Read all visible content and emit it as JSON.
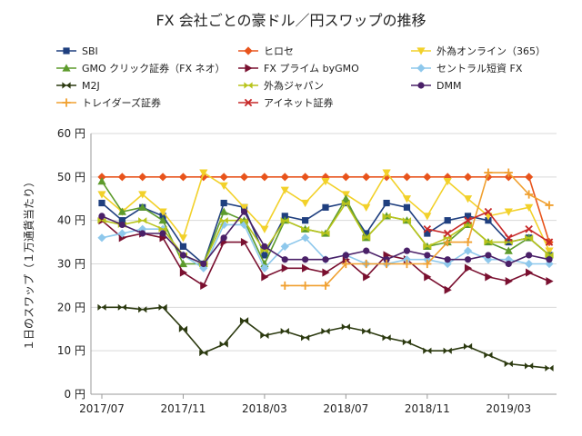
{
  "chart_data": {
    "type": "line",
    "title": "FX 会社ごとの豪ドル／円スワップの推移",
    "ylabel": "１日のスワップ（１万通貨当たり）",
    "xlabel": "",
    "ylim": [
      0,
      60
    ],
    "y_ticks": [
      "0 円",
      "10 円",
      "20 円",
      "30 円",
      "40 円",
      "50 円",
      "60 円"
    ],
    "x_ticks": [
      {
        "label": "2017/07",
        "index": 0
      },
      {
        "label": "2017/11",
        "index": 4
      },
      {
        "label": "2018/03",
        "index": 8
      },
      {
        "label": "2018/07",
        "index": 12
      },
      {
        "label": "2018/11",
        "index": 16
      },
      {
        "label": "2019/03",
        "index": 20
      }
    ],
    "x_count": 23,
    "series": [
      {
        "name": "SBI",
        "color": "#1f3f7f",
        "marker": "square",
        "values": [
          44,
          40,
          43,
          41,
          34,
          30,
          44,
          43,
          32,
          41,
          40,
          43,
          44,
          37,
          44,
          43,
          37,
          40,
          41,
          40,
          35,
          36,
          32
        ]
      },
      {
        "name": "ヒロセ",
        "color": "#e8541c",
        "marker": "diamond",
        "values": [
          50,
          50,
          50,
          50,
          50,
          50,
          50,
          50,
          50,
          50,
          50,
          50,
          50,
          50,
          50,
          50,
          50,
          50,
          50,
          50,
          50,
          50,
          35
        ]
      },
      {
        "name": "外為オンライン（365）",
        "color": "#f2d12a",
        "marker": "triangle-down",
        "values": [
          46,
          42,
          46,
          42,
          36,
          51,
          48,
          43,
          38,
          47,
          44,
          49,
          46,
          43,
          51,
          45,
          41,
          49,
          45,
          41,
          42,
          43,
          33
        ]
      },
      {
        "name": "GMO クリック証券（FX ネオ）",
        "color": "#5d9b2c",
        "marker": "triangle",
        "values": [
          49,
          42,
          43,
          40,
          30,
          30,
          42,
          40,
          30,
          40,
          38,
          37,
          45,
          36,
          41,
          40,
          34,
          35,
          39,
          35,
          33,
          36,
          32
        ]
      },
      {
        "name": "FX プライム byGMO",
        "color": "#7a1030",
        "marker": "triangle-right",
        "values": [
          40,
          36,
          37,
          36,
          28,
          25,
          35,
          35,
          27,
          29,
          29,
          28,
          31,
          27,
          32,
          31,
          27,
          24,
          29,
          27,
          26,
          28,
          26
        ]
      },
      {
        "name": "セントラル短資 FX",
        "color": "#8ec8ec",
        "marker": "diamond",
        "values": [
          36,
          37,
          38,
          38,
          32,
          29,
          39,
          39,
          29,
          34,
          36,
          31,
          32,
          30,
          30,
          31,
          31,
          30,
          33,
          31,
          31,
          30,
          30
        ]
      },
      {
        "name": "M2J",
        "color": "#2c3a10",
        "marker": "bowtie",
        "values": [
          20,
          20,
          19.5,
          20,
          15,
          9.5,
          11.5,
          17,
          13.5,
          14.5,
          13,
          14.5,
          15.5,
          14.5,
          13,
          12,
          10,
          10,
          11,
          9,
          7,
          6.5,
          6
        ]
      },
      {
        "name": "外為ジャパン",
        "color": "#b8c41c",
        "marker": "bowtie",
        "values": [
          40,
          39,
          40,
          38,
          32,
          30,
          40,
          40,
          33,
          40,
          38,
          37,
          44,
          36,
          41,
          40,
          34,
          36,
          39,
          35,
          35,
          36,
          32
        ]
      },
      {
        "name": "DMM",
        "color": "#4a2068",
        "marker": "circle",
        "values": [
          41,
          39,
          37,
          37,
          32,
          30,
          36,
          42,
          34,
          31,
          31,
          31,
          32,
          33,
          31,
          33,
          32,
          31,
          31,
          32,
          30,
          32,
          31
        ]
      },
      {
        "name": "トレイダーズ証券",
        "color": "#f0a030",
        "marker": "plus",
        "values": [
          null,
          null,
          null,
          null,
          null,
          null,
          null,
          null,
          null,
          25,
          25,
          25,
          30,
          30,
          30,
          30,
          30,
          35,
          35,
          51,
          51,
          46,
          43.5
        ]
      },
      {
        "name": "アイネット証券",
        "color": "#c62828",
        "marker": "x",
        "values": [
          null,
          null,
          null,
          null,
          null,
          null,
          null,
          null,
          null,
          null,
          null,
          null,
          null,
          null,
          null,
          null,
          38,
          37,
          40,
          42,
          36,
          38,
          35
        ]
      }
    ]
  }
}
